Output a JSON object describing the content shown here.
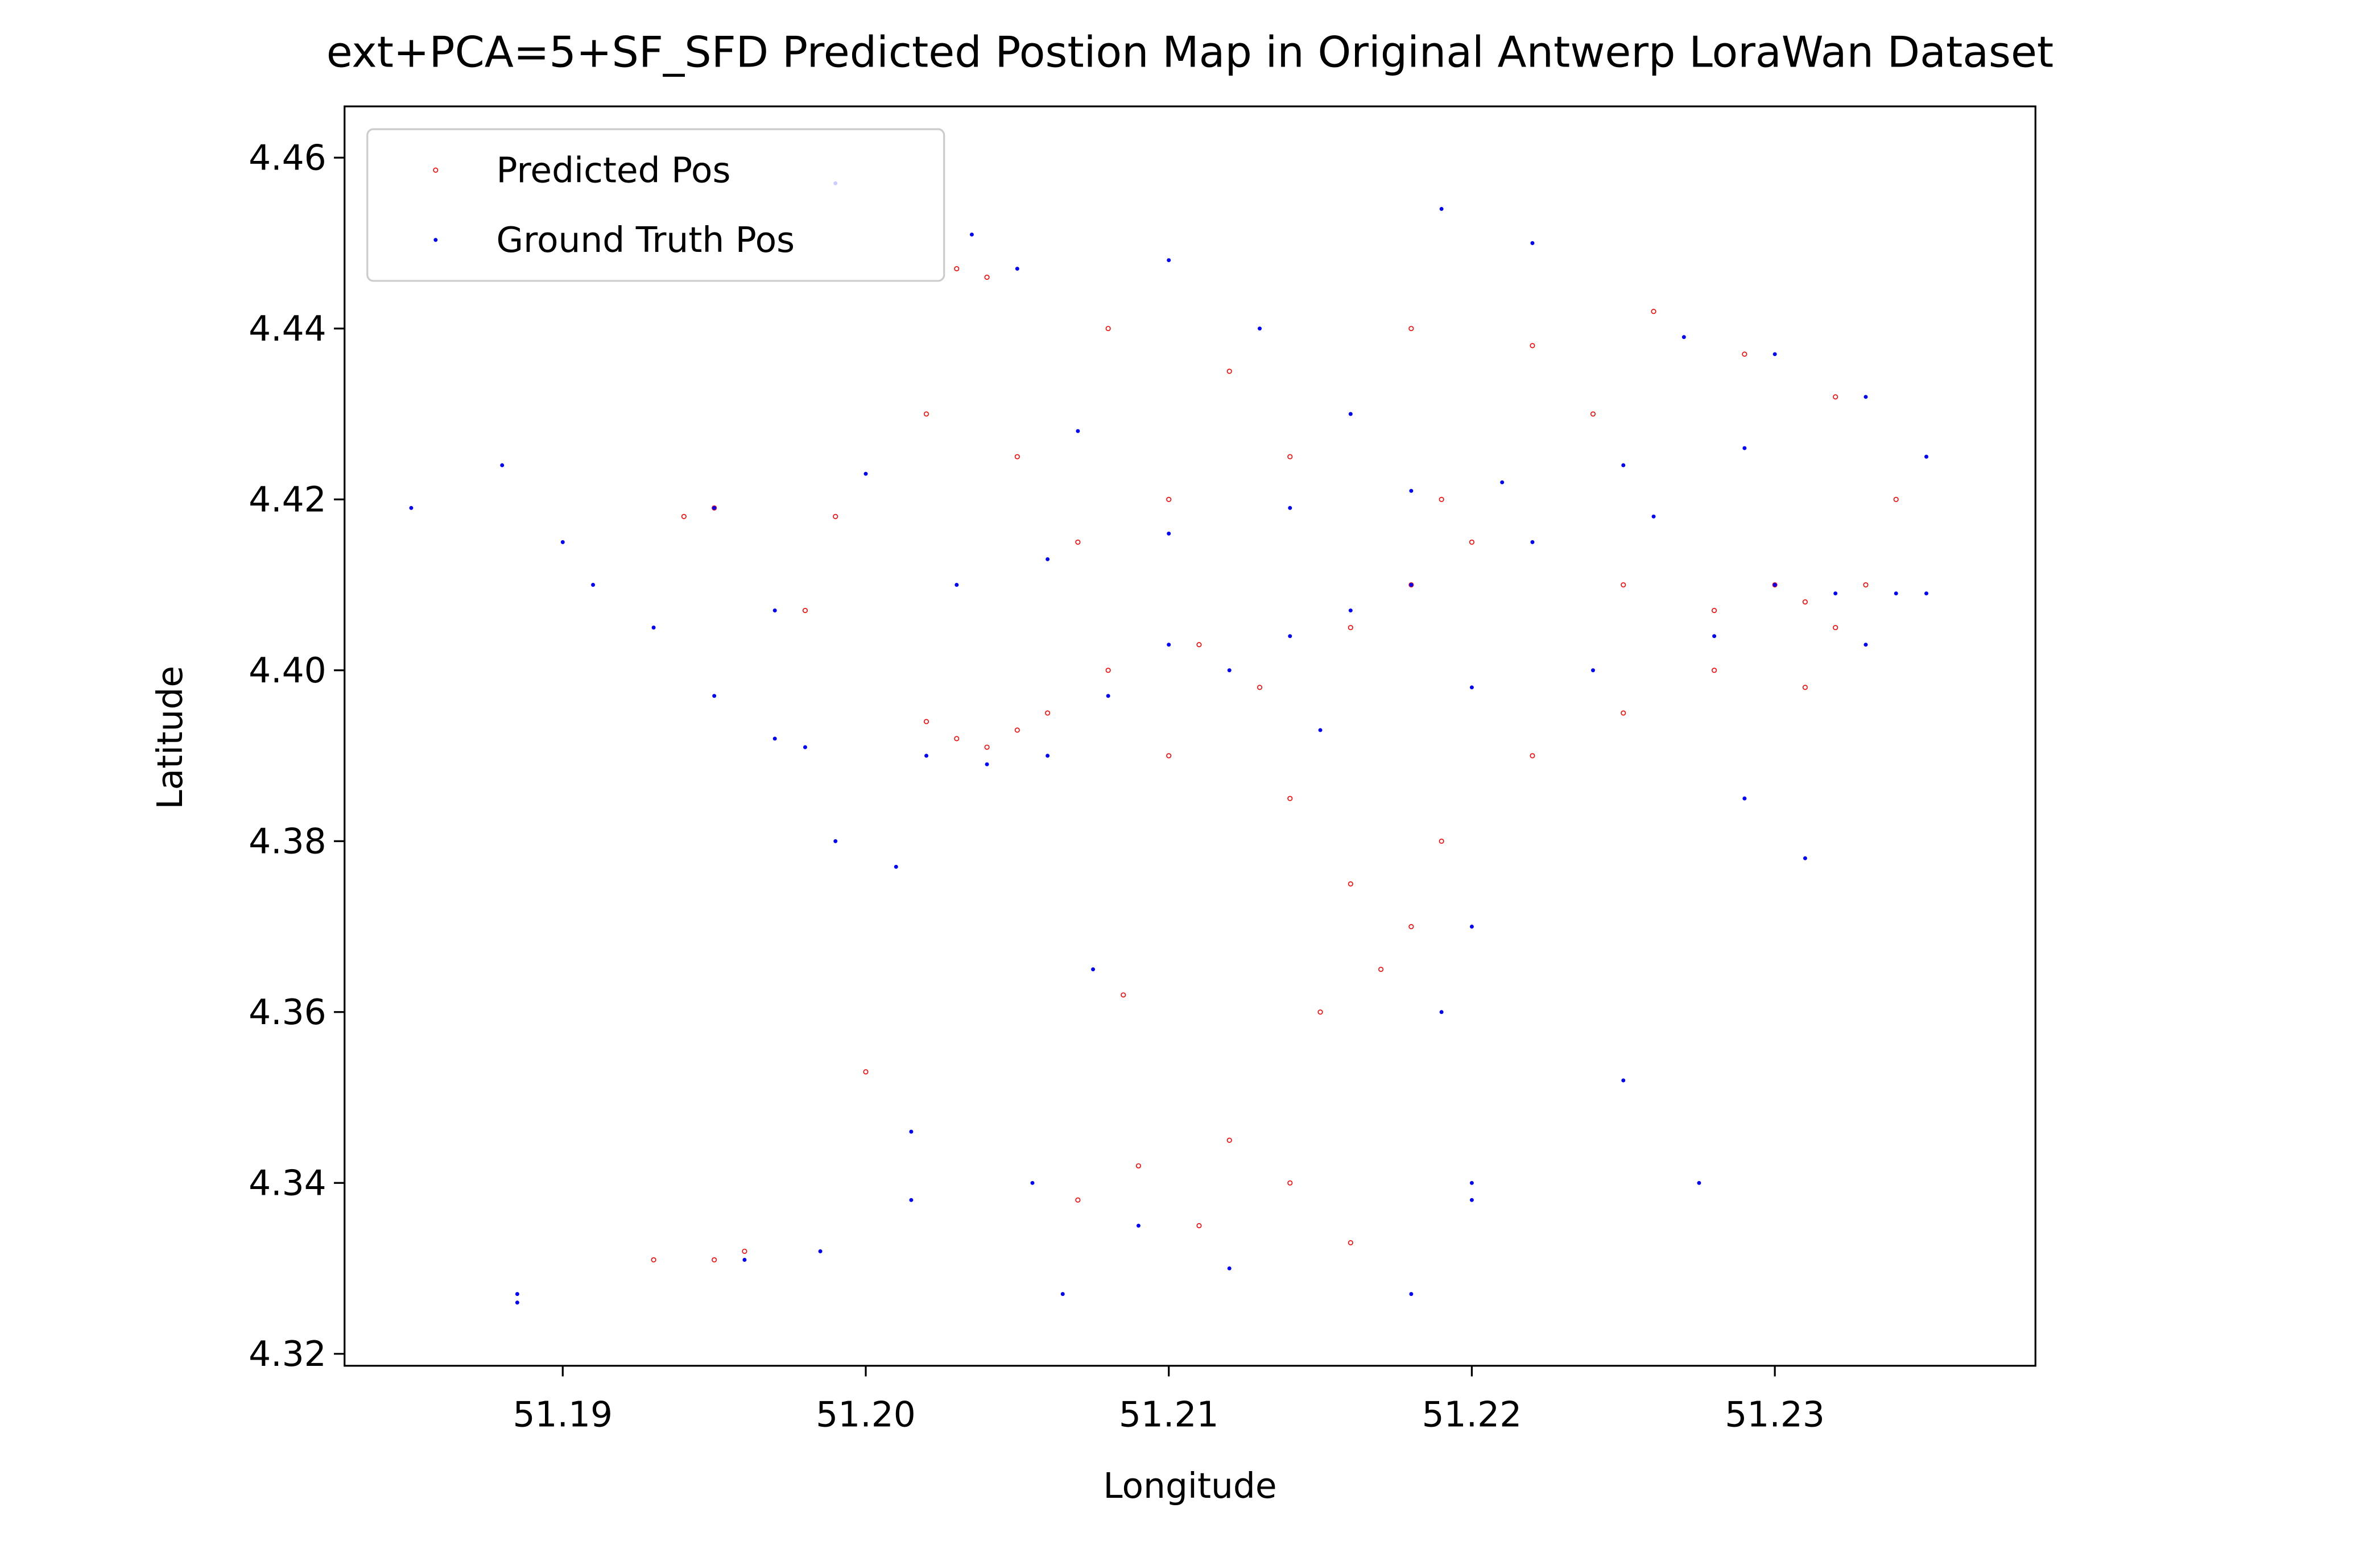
{
  "chart_data": {
    "type": "scatter",
    "title": "ext+PCA=5+SF_SFD Predicted Postion Map in Original Antwerp LoraWan Dataset",
    "x_label": "Longitude",
    "y_label": "Latitude",
    "xlim": [
      51.1828,
      51.2386
    ],
    "ylim": [
      4.3186,
      4.466
    ],
    "xticks": [
      51.19,
      {
        "value": 51.2,
        "label": "51.20"
      },
      51.21,
      51.22,
      51.23
    ],
    "yticks": [
      4.32,
      4.34,
      4.36,
      4.38,
      {
        "value": 4.4,
        "label": "4.40"
      },
      4.42,
      4.44,
      4.46
    ],
    "grid": false,
    "legend": "upper left",
    "series": [
      {
        "name": "Predicted Pos",
        "color": "#ff0000",
        "marker": "hollow",
        "x": [
          51.203,
          51.204,
          51.208,
          51.212,
          51.218,
          51.222,
          51.226,
          51.229,
          51.232,
          51.234,
          51.233,
          51.231,
          51.232,
          51.23,
          51.228,
          51.225,
          51.22,
          51.218,
          51.216,
          51.219,
          51.214,
          51.21,
          51.207,
          51.205,
          51.202,
          51.199,
          51.195,
          51.194,
          51.198,
          51.202,
          51.203,
          51.204,
          51.206,
          51.205,
          51.208,
          51.211,
          51.213,
          51.21,
          51.214,
          51.216,
          51.218,
          51.217,
          51.215,
          51.219,
          51.222,
          51.225,
          51.228,
          51.231,
          51.212,
          51.214,
          51.211,
          51.209,
          51.216,
          51.207,
          51.195,
          51.196,
          51.193,
          51.2,
          51.2085,
          51.224
        ],
        "values": [
          4.447,
          4.446,
          4.44,
          4.435,
          4.44,
          4.438,
          4.442,
          4.437,
          4.432,
          4.42,
          4.41,
          4.408,
          4.405,
          4.41,
          4.407,
          4.41,
          4.415,
          4.41,
          4.405,
          4.42,
          4.425,
          4.42,
          4.415,
          4.425,
          4.43,
          4.418,
          4.419,
          4.418,
          4.407,
          4.394,
          4.392,
          4.391,
          4.395,
          4.393,
          4.4,
          4.403,
          4.398,
          4.39,
          4.385,
          4.375,
          4.37,
          4.365,
          4.36,
          4.38,
          4.39,
          4.395,
          4.4,
          4.398,
          4.345,
          4.34,
          4.335,
          4.342,
          4.333,
          4.338,
          4.331,
          4.332,
          4.331,
          4.353,
          4.362,
          4.43
        ]
      },
      {
        "name": "Ground Truth Pos",
        "color": "#0000ff",
        "marker": "dot",
        "x": [
          51.185,
          51.188,
          51.19,
          51.191,
          51.193,
          51.195,
          51.197,
          51.199,
          51.201,
          51.202,
          51.204,
          51.206,
          51.208,
          51.21,
          51.212,
          51.214,
          51.216,
          51.218,
          51.222,
          51.226,
          51.23,
          51.232,
          51.234,
          51.235,
          51.233,
          51.228,
          51.224,
          51.22,
          51.215,
          51.198,
          51.195,
          51.197,
          51.203,
          51.206,
          51.21,
          51.214,
          51.218,
          51.221,
          51.225,
          51.229,
          51.235,
          51.227,
          51.23,
          51.233,
          51.222,
          51.219,
          51.21,
          51.205,
          51.2035,
          51.199,
          51.213,
          51.216,
          51.207,
          51.2,
          51.219,
          51.22,
          51.22,
          51.218,
          51.212,
          51.209,
          51.2065,
          51.2055,
          51.2015,
          51.2015,
          51.1985,
          51.1885,
          51.1885,
          51.196,
          51.2075,
          51.22,
          51.229,
          51.231,
          51.2275,
          51.225
        ],
        "values": [
          4.419,
          4.424,
          4.415,
          4.41,
          4.405,
          4.397,
          4.392,
          4.38,
          4.377,
          4.39,
          4.389,
          4.39,
          4.397,
          4.403,
          4.4,
          4.404,
          4.407,
          4.41,
          4.415,
          4.418,
          4.41,
          4.409,
          4.409,
          4.409,
          4.403,
          4.404,
          4.4,
          4.398,
          4.393,
          4.391,
          4.419,
          4.407,
          4.41,
          4.413,
          4.416,
          4.419,
          4.421,
          4.422,
          4.424,
          4.426,
          4.425,
          4.439,
          4.437,
          4.432,
          4.45,
          4.454,
          4.448,
          4.447,
          4.451,
          4.457,
          4.44,
          4.43,
          4.428,
          4.423,
          4.36,
          4.34,
          4.338,
          4.327,
          4.33,
          4.335,
          4.327,
          4.34,
          4.346,
          4.338,
          4.332,
          4.327,
          4.326,
          4.331,
          4.365,
          4.37,
          4.385,
          4.378,
          4.34,
          4.352
        ]
      }
    ]
  }
}
